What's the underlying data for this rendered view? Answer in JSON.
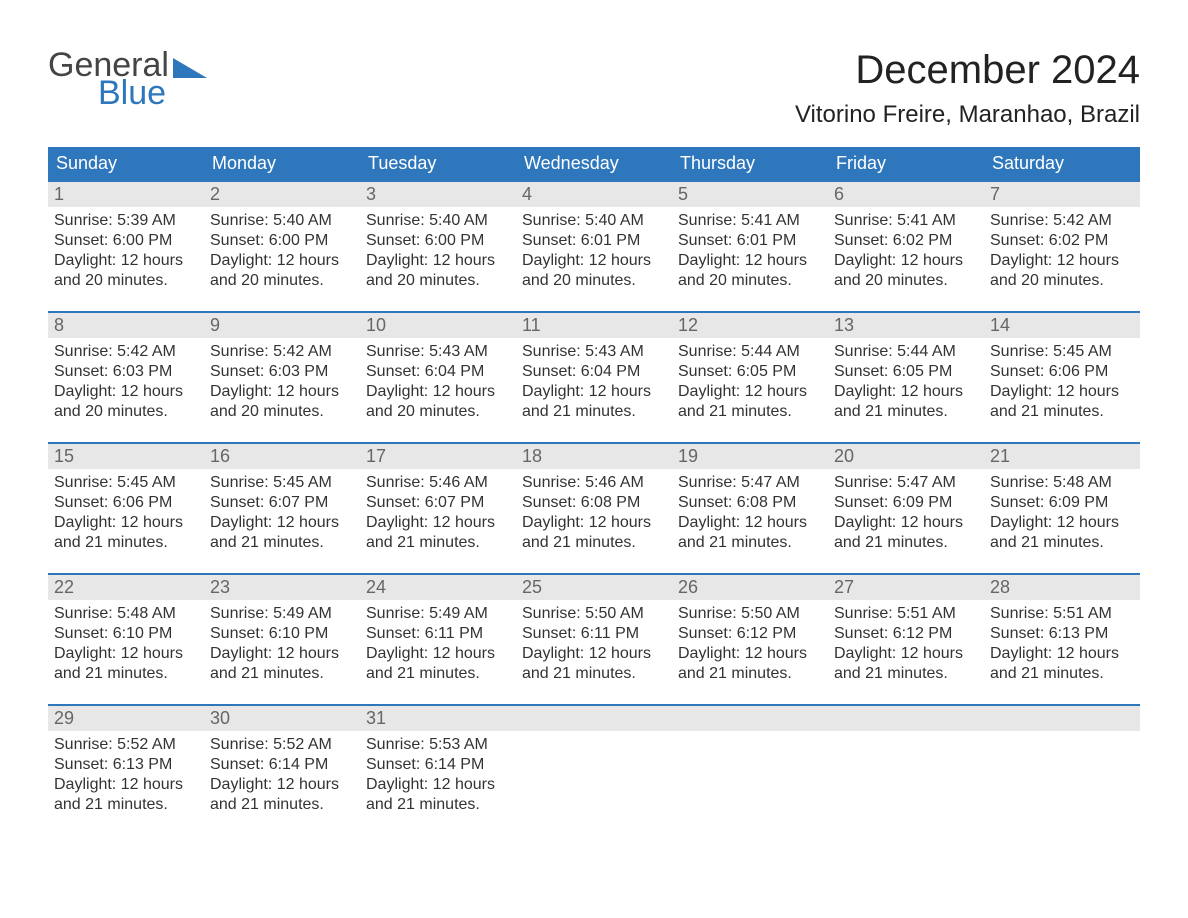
{
  "logo": {
    "word1": "General",
    "word2": "Blue"
  },
  "title": {
    "month": "December 2024",
    "location": "Vitorino Freire, Maranhao, Brazil"
  },
  "colors": {
    "brand_blue": "#2f77bc",
    "header_bg": "#2f77bc",
    "header_text": "#ffffff",
    "daynum_bg": "#e7e7e7",
    "daynum_text": "#666666",
    "body_text": "#333333",
    "page_bg": "#ffffff",
    "logo_gray": "#444444"
  },
  "typography": {
    "title_fontsize": 40,
    "location_fontsize": 24,
    "dow_fontsize": 18,
    "daynum_fontsize": 18,
    "body_fontsize": 16,
    "logo_fontsize": 34,
    "font_family": "Arial"
  },
  "calendar": {
    "days_of_week": [
      "Sunday",
      "Monday",
      "Tuesday",
      "Wednesday",
      "Thursday",
      "Friday",
      "Saturday"
    ],
    "weeks": [
      [
        {
          "n": "1",
          "sunrise": "Sunrise: 5:39 AM",
          "sunset": "Sunset: 6:00 PM",
          "d1": "Daylight: 12 hours",
          "d2": "and 20 minutes."
        },
        {
          "n": "2",
          "sunrise": "Sunrise: 5:40 AM",
          "sunset": "Sunset: 6:00 PM",
          "d1": "Daylight: 12 hours",
          "d2": "and 20 minutes."
        },
        {
          "n": "3",
          "sunrise": "Sunrise: 5:40 AM",
          "sunset": "Sunset: 6:00 PM",
          "d1": "Daylight: 12 hours",
          "d2": "and 20 minutes."
        },
        {
          "n": "4",
          "sunrise": "Sunrise: 5:40 AM",
          "sunset": "Sunset: 6:01 PM",
          "d1": "Daylight: 12 hours",
          "d2": "and 20 minutes."
        },
        {
          "n": "5",
          "sunrise": "Sunrise: 5:41 AM",
          "sunset": "Sunset: 6:01 PM",
          "d1": "Daylight: 12 hours",
          "d2": "and 20 minutes."
        },
        {
          "n": "6",
          "sunrise": "Sunrise: 5:41 AM",
          "sunset": "Sunset: 6:02 PM",
          "d1": "Daylight: 12 hours",
          "d2": "and 20 minutes."
        },
        {
          "n": "7",
          "sunrise": "Sunrise: 5:42 AM",
          "sunset": "Sunset: 6:02 PM",
          "d1": "Daylight: 12 hours",
          "d2": "and 20 minutes."
        }
      ],
      [
        {
          "n": "8",
          "sunrise": "Sunrise: 5:42 AM",
          "sunset": "Sunset: 6:03 PM",
          "d1": "Daylight: 12 hours",
          "d2": "and 20 minutes."
        },
        {
          "n": "9",
          "sunrise": "Sunrise: 5:42 AM",
          "sunset": "Sunset: 6:03 PM",
          "d1": "Daylight: 12 hours",
          "d2": "and 20 minutes."
        },
        {
          "n": "10",
          "sunrise": "Sunrise: 5:43 AM",
          "sunset": "Sunset: 6:04 PM",
          "d1": "Daylight: 12 hours",
          "d2": "and 20 minutes."
        },
        {
          "n": "11",
          "sunrise": "Sunrise: 5:43 AM",
          "sunset": "Sunset: 6:04 PM",
          "d1": "Daylight: 12 hours",
          "d2": "and 21 minutes."
        },
        {
          "n": "12",
          "sunrise": "Sunrise: 5:44 AM",
          "sunset": "Sunset: 6:05 PM",
          "d1": "Daylight: 12 hours",
          "d2": "and 21 minutes."
        },
        {
          "n": "13",
          "sunrise": "Sunrise: 5:44 AM",
          "sunset": "Sunset: 6:05 PM",
          "d1": "Daylight: 12 hours",
          "d2": "and 21 minutes."
        },
        {
          "n": "14",
          "sunrise": "Sunrise: 5:45 AM",
          "sunset": "Sunset: 6:06 PM",
          "d1": "Daylight: 12 hours",
          "d2": "and 21 minutes."
        }
      ],
      [
        {
          "n": "15",
          "sunrise": "Sunrise: 5:45 AM",
          "sunset": "Sunset: 6:06 PM",
          "d1": "Daylight: 12 hours",
          "d2": "and 21 minutes."
        },
        {
          "n": "16",
          "sunrise": "Sunrise: 5:45 AM",
          "sunset": "Sunset: 6:07 PM",
          "d1": "Daylight: 12 hours",
          "d2": "and 21 minutes."
        },
        {
          "n": "17",
          "sunrise": "Sunrise: 5:46 AM",
          "sunset": "Sunset: 6:07 PM",
          "d1": "Daylight: 12 hours",
          "d2": "and 21 minutes."
        },
        {
          "n": "18",
          "sunrise": "Sunrise: 5:46 AM",
          "sunset": "Sunset: 6:08 PM",
          "d1": "Daylight: 12 hours",
          "d2": "and 21 minutes."
        },
        {
          "n": "19",
          "sunrise": "Sunrise: 5:47 AM",
          "sunset": "Sunset: 6:08 PM",
          "d1": "Daylight: 12 hours",
          "d2": "and 21 minutes."
        },
        {
          "n": "20",
          "sunrise": "Sunrise: 5:47 AM",
          "sunset": "Sunset: 6:09 PM",
          "d1": "Daylight: 12 hours",
          "d2": "and 21 minutes."
        },
        {
          "n": "21",
          "sunrise": "Sunrise: 5:48 AM",
          "sunset": "Sunset: 6:09 PM",
          "d1": "Daylight: 12 hours",
          "d2": "and 21 minutes."
        }
      ],
      [
        {
          "n": "22",
          "sunrise": "Sunrise: 5:48 AM",
          "sunset": "Sunset: 6:10 PM",
          "d1": "Daylight: 12 hours",
          "d2": "and 21 minutes."
        },
        {
          "n": "23",
          "sunrise": "Sunrise: 5:49 AM",
          "sunset": "Sunset: 6:10 PM",
          "d1": "Daylight: 12 hours",
          "d2": "and 21 minutes."
        },
        {
          "n": "24",
          "sunrise": "Sunrise: 5:49 AM",
          "sunset": "Sunset: 6:11 PM",
          "d1": "Daylight: 12 hours",
          "d2": "and 21 minutes."
        },
        {
          "n": "25",
          "sunrise": "Sunrise: 5:50 AM",
          "sunset": "Sunset: 6:11 PM",
          "d1": "Daylight: 12 hours",
          "d2": "and 21 minutes."
        },
        {
          "n": "26",
          "sunrise": "Sunrise: 5:50 AM",
          "sunset": "Sunset: 6:12 PM",
          "d1": "Daylight: 12 hours",
          "d2": "and 21 minutes."
        },
        {
          "n": "27",
          "sunrise": "Sunrise: 5:51 AM",
          "sunset": "Sunset: 6:12 PM",
          "d1": "Daylight: 12 hours",
          "d2": "and 21 minutes."
        },
        {
          "n": "28",
          "sunrise": "Sunrise: 5:51 AM",
          "sunset": "Sunset: 6:13 PM",
          "d1": "Daylight: 12 hours",
          "d2": "and 21 minutes."
        }
      ],
      [
        {
          "n": "29",
          "sunrise": "Sunrise: 5:52 AM",
          "sunset": "Sunset: 6:13 PM",
          "d1": "Daylight: 12 hours",
          "d2": "and 21 minutes."
        },
        {
          "n": "30",
          "sunrise": "Sunrise: 5:52 AM",
          "sunset": "Sunset: 6:14 PM",
          "d1": "Daylight: 12 hours",
          "d2": "and 21 minutes."
        },
        {
          "n": "31",
          "sunrise": "Sunrise: 5:53 AM",
          "sunset": "Sunset: 6:14 PM",
          "d1": "Daylight: 12 hours",
          "d2": "and 21 minutes."
        },
        {
          "n": "",
          "sunrise": "",
          "sunset": "",
          "d1": "",
          "d2": ""
        },
        {
          "n": "",
          "sunrise": "",
          "sunset": "",
          "d1": "",
          "d2": ""
        },
        {
          "n": "",
          "sunrise": "",
          "sunset": "",
          "d1": "",
          "d2": ""
        },
        {
          "n": "",
          "sunrise": "",
          "sunset": "",
          "d1": "",
          "d2": ""
        }
      ]
    ]
  }
}
